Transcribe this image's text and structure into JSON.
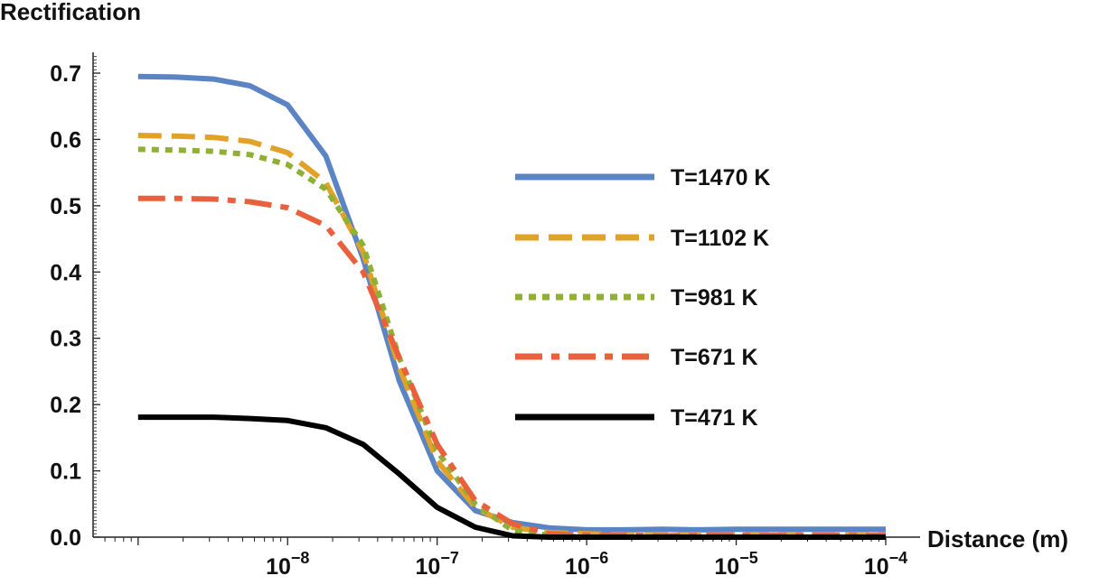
{
  "chart_data": {
    "type": "line",
    "ylabel": "Rectification",
    "xlabel": "Distance (m)",
    "x_scale": "log",
    "xlim": [
      5e-10,
      0.0001
    ],
    "ylim": [
      0,
      0.72
    ],
    "y_ticks": [
      "0.0",
      "0.1",
      "0.2",
      "0.3",
      "0.4",
      "0.5",
      "0.6",
      "0.7"
    ],
    "y_tick_values": [
      0,
      0.1,
      0.2,
      0.3,
      0.4,
      0.5,
      0.6,
      0.7
    ],
    "x_ticks": [
      {
        "value": 1e-08,
        "base": "10",
        "exp": "−8"
      },
      {
        "value": 1e-07,
        "base": "10",
        "exp": "−7"
      },
      {
        "value": 1e-06,
        "base": "10",
        "exp": "−6"
      },
      {
        "value": 1e-05,
        "base": "10",
        "exp": "−5"
      },
      {
        "value": 0.0001,
        "base": "10",
        "exp": "−4"
      }
    ],
    "grid": false,
    "legend_position": "right",
    "x": [
      1e-09,
      1.8e-09,
      3.2e-09,
      5.6e-09,
      1e-08,
      1.8e-08,
      3.2e-08,
      5.6e-08,
      1e-07,
      1.8e-07,
      3.2e-07,
      5.6e-07,
      1e-06,
      1.8e-06,
      3.2e-06,
      5.6e-06,
      1e-05,
      1.8e-05,
      3.2e-05,
      5.6e-05,
      0.0001
    ],
    "series": [
      {
        "name": "T=1470 K",
        "color": "#5b84c4",
        "dash": "solid",
        "values": [
          0.695,
          0.694,
          0.691,
          0.681,
          0.652,
          0.575,
          0.42,
          0.235,
          0.1,
          0.04,
          0.022,
          0.014,
          0.011,
          0.011,
          0.012,
          0.011,
          0.012,
          0.012,
          0.012,
          0.012,
          0.012
        ]
      },
      {
        "name": "T=1102 K",
        "color": "#e2a229",
        "dash": "dashed",
        "values": [
          0.606,
          0.605,
          0.603,
          0.597,
          0.58,
          0.535,
          0.43,
          0.255,
          0.115,
          0.045,
          0.015,
          0.007,
          0.005,
          0.004,
          0.004,
          0.004,
          0.004,
          0.004,
          0.004,
          0.004,
          0.004
        ]
      },
      {
        "name": "T=981 K",
        "color": "#8fb035",
        "dash": "dotted",
        "values": [
          0.585,
          0.584,
          0.582,
          0.577,
          0.562,
          0.525,
          0.44,
          0.27,
          0.13,
          0.05,
          0.01,
          0.003,
          0.0,
          0.0,
          0.0,
          0.0,
          0.0,
          0.0,
          0.0,
          0.0,
          0.0
        ]
      },
      {
        "name": "T=671 K",
        "color": "#e8603c",
        "dash": "dashdot",
        "values": [
          0.511,
          0.511,
          0.51,
          0.506,
          0.497,
          0.47,
          0.4,
          0.27,
          0.14,
          0.055,
          0.02,
          0.005,
          0.003,
          0.003,
          0.002,
          0.003,
          0.003,
          0.003,
          0.003,
          0.003,
          0.003
        ]
      },
      {
        "name": "T=471 K",
        "color": "#000000",
        "dash": "solid",
        "values": [
          0.181,
          0.181,
          0.181,
          0.179,
          0.176,
          0.165,
          0.14,
          0.095,
          0.045,
          0.015,
          0.002,
          0.0,
          0.0,
          0.0,
          0.0,
          0.0,
          0.0,
          0.0,
          0.0,
          0.0,
          0.0
        ]
      }
    ]
  }
}
